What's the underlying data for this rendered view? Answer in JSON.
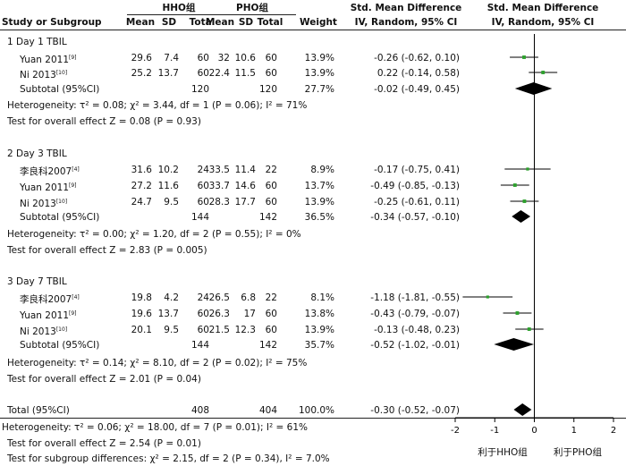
{
  "header": {
    "group1": "HHO组",
    "group2": "PHO组",
    "effect1": "Std. Mean Difference",
    "effect2": "Std. Mean Difference",
    "col_study": "Study or Subgroup",
    "col_mean": "Mean",
    "col_sd": "SD",
    "col_total": "Total",
    "col_weight": "Weight",
    "col_ci": "IV, Random, 95% CI",
    "col_plot": "IV, Random, 95% CI"
  },
  "subgroups": [
    {
      "title": "1 Day 1 TBIL",
      "studies": [
        {
          "name": "Yuan 2011",
          "ref": "[9]",
          "m1": "29.6",
          "sd1": "7.4",
          "n1": "60",
          "m2": "32",
          "sd2": "10.6",
          "n2": "60",
          "weight": "13.9%",
          "ci": "-0.26 (-0.62, 0.10)"
        },
        {
          "name": "Ni 2013",
          "ref": "[10]",
          "m1": "25.2",
          "sd1": "13.7",
          "n1": "60",
          "m2": "22.4",
          "sd2": "11.5",
          "n2": "60",
          "weight": "13.9%",
          "ci": "0.22 (-0.14, 0.58)"
        }
      ],
      "subtotal": {
        "label": "Subtotal (95%CI)",
        "n1": "120",
        "n2": "120",
        "weight": "27.7%",
        "ci": "-0.02 (-0.49, 0.45)"
      },
      "heterogeneity": "Heterogeneity: τ² = 0.08; χ² = 3.44, df = 1 (P = 0.06); I² = 71%",
      "overall": "Test for overall effect Z = 0.08 (P = 0.93)"
    },
    {
      "title": "2 Day 3 TBIL",
      "studies": [
        {
          "name": "李良科2007",
          "ref": "[4]",
          "m1": "31.6",
          "sd1": "10.2",
          "n1": "24",
          "m2": "33.5",
          "sd2": "11.4",
          "n2": "22",
          "weight": "8.9%",
          "ci": "-0.17 (-0.75, 0.41)"
        },
        {
          "name": "Yuan 2011",
          "ref": "[9]",
          "m1": "27.2",
          "sd1": "11.6",
          "n1": "60",
          "m2": "33.7",
          "sd2": "14.6",
          "n2": "60",
          "weight": "13.7%",
          "ci": "-0.49 (-0.85, -0.13)"
        },
        {
          "name": "Ni 2013",
          "ref": "[10]",
          "m1": "24.7",
          "sd1": "9.5",
          "n1": "60",
          "m2": "28.3",
          "sd2": "17.7",
          "n2": "60",
          "weight": "13.9%",
          "ci": "-0.25 (-0.61, 0.11)"
        }
      ],
      "subtotal": {
        "label": "Subtotal (95%CI)",
        "n1": "144",
        "n2": "142",
        "weight": "36.5%",
        "ci": "-0.34 (-0.57, -0.10)"
      },
      "heterogeneity": "Heterogeneity: τ² = 0.00; χ² = 1.20, df = 2 (P = 0.55); I² = 0%",
      "overall": "Test for overall effect Z = 2.83 (P = 0.005)"
    },
    {
      "title": "3 Day 7 TBIL",
      "studies": [
        {
          "name": "李良科2007",
          "ref": "[4]",
          "m1": "19.8",
          "sd1": "4.2",
          "n1": "24",
          "m2": "26.5",
          "sd2": "6.8",
          "n2": "22",
          "weight": "8.1%",
          "ci": "-1.18 (-1.81, -0.55)"
        },
        {
          "name": "Yuan 2011",
          "ref": "[9]",
          "m1": "19.6",
          "sd1": "13.7",
          "n1": "60",
          "m2": "26.3",
          "sd2": "17",
          "n2": "60",
          "weight": "13.8%",
          "ci": "-0.43 (-0.79, -0.07)"
        },
        {
          "name": "Ni 2013",
          "ref": "[10]",
          "m1": "20.1",
          "sd1": "9.5",
          "n1": "60",
          "m2": "21.5",
          "sd2": "12.3",
          "n2": "60",
          "weight": "13.9%",
          "ci": "-0.13 (-0.48, 0.23)"
        }
      ],
      "subtotal": {
        "label": "Subtotal (95%CI)",
        "n1": "144",
        "n2": "142",
        "weight": "35.7%",
        "ci": "-0.52 (-1.02, -0.01)"
      },
      "heterogeneity": "Heterogeneity: τ² = 0.14; χ² = 8.10, df = 2 (P = 0.02); I² = 75%",
      "overall": "Test for overall effect Z = 2.01 (P = 0.04)"
    }
  ],
  "total": {
    "label": "Total (95%CI)",
    "n1": "408",
    "n2": "404",
    "weight": "100.0%",
    "ci": "-0.30 (-0.52, -0.07)"
  },
  "footer": {
    "heterogeneity": "Heterogeneity: τ² = 0.06; χ² = 18.00, df = 7 (P = 0.01); I² = 61%",
    "overall": "Test for overall effect Z = 2.54 (P = 0.01)",
    "subgroup": "Test for subgroup differences: χ² = 2.15, df = 2 (P = 0.34), I² = 7.0%"
  },
  "axis": {
    "favours_left": "利于HHO组",
    "favours_right": "利于PHO组"
  },
  "colors": {
    "marker": "#2ca02c",
    "diamond": "#000000"
  },
  "chart_data": {
    "type": "scatter",
    "xlim": [
      -2,
      2
    ],
    "xticks": [
      "-2",
      "-1",
      "0",
      "1",
      "2"
    ],
    "grid": false,
    "studies": [
      {
        "row": "Yuan 2011 (Day 1)",
        "est": -0.26,
        "lo": -0.62,
        "hi": 0.1,
        "weight": 13.9
      },
      {
        "row": "Ni 2013 (Day 1)",
        "est": 0.22,
        "lo": -0.14,
        "hi": 0.58,
        "weight": 13.9
      },
      {
        "row": "李良科2007 (Day 3)",
        "est": -0.17,
        "lo": -0.75,
        "hi": 0.41,
        "weight": 8.9
      },
      {
        "row": "Yuan 2011 (Day 3)",
        "est": -0.49,
        "lo": -0.85,
        "hi": -0.13,
        "weight": 13.7
      },
      {
        "row": "Ni 2013 (Day 3)",
        "est": -0.25,
        "lo": -0.61,
        "hi": 0.11,
        "weight": 13.9
      },
      {
        "row": "李良科2007 (Day 7)",
        "est": -1.18,
        "lo": -1.81,
        "hi": -0.55,
        "weight": 8.1
      },
      {
        "row": "Yuan 2011 (Day 7)",
        "est": -0.43,
        "lo": -0.79,
        "hi": -0.07,
        "weight": 13.8
      },
      {
        "row": "Ni 2013 (Day 7)",
        "est": -0.13,
        "lo": -0.48,
        "hi": 0.23,
        "weight": 13.9
      }
    ],
    "pooled": [
      {
        "row": "Subtotal Day 1",
        "est": -0.02,
        "lo": -0.49,
        "hi": 0.45
      },
      {
        "row": "Subtotal Day 3",
        "est": -0.34,
        "lo": -0.57,
        "hi": -0.1
      },
      {
        "row": "Subtotal Day 7",
        "est": -0.52,
        "lo": -1.02,
        "hi": -0.01
      },
      {
        "row": "Total",
        "est": -0.3,
        "lo": -0.52,
        "hi": -0.07
      }
    ]
  }
}
